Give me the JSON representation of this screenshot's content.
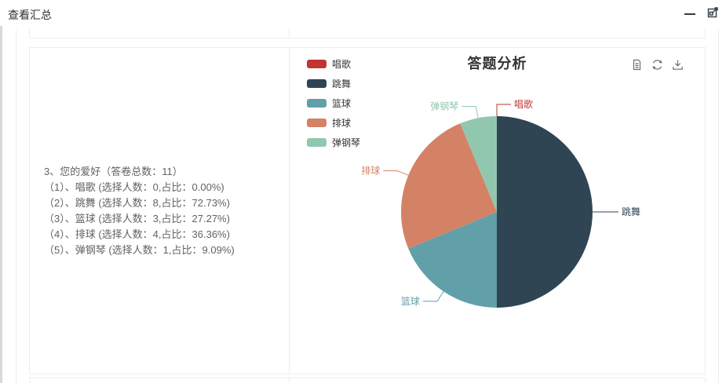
{
  "window": {
    "title": "查看汇总"
  },
  "left_panel": {
    "question_summary": "3、您的爱好（答卷总数：11）",
    "options": [
      "（1）、唱歌 (选择人数：0,占比：0.00%)",
      "（2）、跳舞 (选择人数：8,占比：72.73%)",
      "（3）、篮球 (选择人数：3,占比：27.27%)",
      "（4）、排球 (选择人数：4,占比：36.36%)",
      "（5）、弹钢琴 (选择人数：1,占比：9.09%)"
    ]
  },
  "chart_data": {
    "type": "pie",
    "title": "答题分析",
    "categories": [
      "唱歌",
      "跳舞",
      "篮球",
      "排球",
      "弹钢琴"
    ],
    "values": [
      0,
      8,
      3,
      4,
      1
    ],
    "percent_of_respondents": [
      "0.00%",
      "72.73%",
      "27.27%",
      "36.36%",
      "9.09%"
    ],
    "total_answers": 11,
    "colors": [
      "#c23531",
      "#2f4554",
      "#61a0a8",
      "#d48265",
      "#91c7ae"
    ],
    "legend_position": "top-left",
    "label_style": "outside-with-leader-lines",
    "start_angle": "12-oclock-clockwise",
    "toolbox": [
      "data-view",
      "refresh",
      "download"
    ]
  }
}
